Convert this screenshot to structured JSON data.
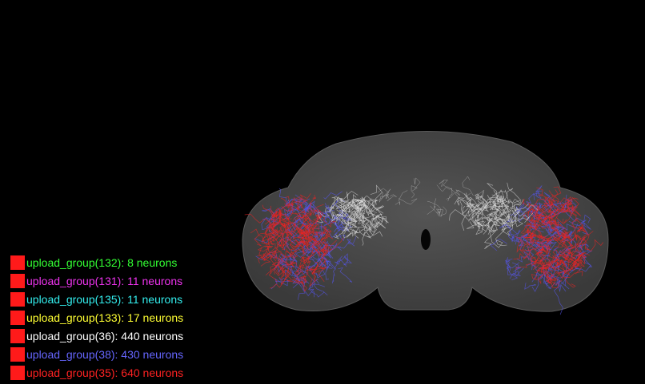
{
  "legend": {
    "entries": [
      {
        "label": "upload_group(132): 8 neurons",
        "color": "#33ff33"
      },
      {
        "label": "upload_group(131): 11 neurons",
        "color": "#ee33ee"
      },
      {
        "label": "upload_group(135): 11 neurons",
        "color": "#33eeee"
      },
      {
        "label": "upload_group(133): 17 neurons",
        "color": "#ffff33"
      },
      {
        "label": "upload_group(36): 440 neurons",
        "color": "#ffffff"
      },
      {
        "label": "upload_group(38): 430 neurons",
        "color": "#6666ff"
      },
      {
        "label": "upload_group(35): 640 neurons",
        "color": "#ff2222"
      }
    ]
  }
}
